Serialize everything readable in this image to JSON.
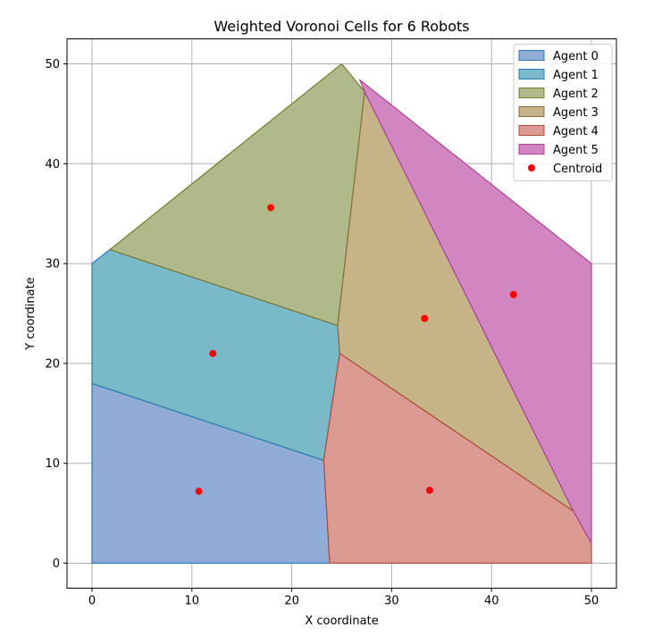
{
  "chart_data": {
    "type": "area",
    "title": "Weighted Voronoi Cells for 6 Robots",
    "xlabel": "X coordinate",
    "ylabel": "Y coordinate",
    "xlim": [
      -2.5,
      52.5
    ],
    "ylim": [
      -2.5,
      52.5
    ],
    "xticks": [
      0,
      10,
      20,
      30,
      40,
      50
    ],
    "yticks": [
      0,
      10,
      20,
      30,
      40,
      50
    ],
    "grid": true,
    "legend_position": "top-right",
    "series": [
      {
        "name": "Agent 0",
        "color": "#91acd6",
        "edge_color": "#2a7ab5",
        "polygon": [
          [
            0,
            0
          ],
          [
            23.8,
            0
          ],
          [
            23.2,
            10.3
          ],
          [
            0,
            18
          ]
        ]
      },
      {
        "name": "Agent 1",
        "color": "#7ab9c8",
        "edge_color": "#2a7ab5",
        "polygon": [
          [
            0,
            18
          ],
          [
            23.2,
            10.3
          ],
          [
            24.8,
            21
          ],
          [
            24.6,
            23.8
          ],
          [
            1.8,
            31.4
          ],
          [
            0,
            30
          ]
        ]
      },
      {
        "name": "Agent 2",
        "color": "#b0b98a",
        "edge_color": "#7a7a30",
        "polygon": [
          [
            1.8,
            31.4
          ],
          [
            24.6,
            23.8
          ],
          [
            27.3,
            47.2
          ],
          [
            25,
            50
          ]
        ]
      },
      {
        "name": "Agent 3",
        "color": "#c6b488",
        "edge_color": "#8c6b3a",
        "polygon": [
          [
            24.6,
            23.8
          ],
          [
            24.8,
            21
          ],
          [
            48.2,
            5.2
          ],
          [
            27.3,
            47.2
          ]
        ]
      },
      {
        "name": "Agent 4",
        "color": "#db9b92",
        "edge_color": "#b04a3a",
        "polygon": [
          [
            23.8,
            0
          ],
          [
            50,
            0
          ],
          [
            50,
            2
          ],
          [
            48.2,
            5.2
          ],
          [
            24.8,
            21
          ],
          [
            23.2,
            10.3
          ]
        ]
      },
      {
        "name": "Agent 5",
        "color": "#d186c1",
        "edge_color": "#b0409a",
        "polygon": [
          [
            27.3,
            47.2
          ],
          [
            48.2,
            5.2
          ],
          [
            50,
            2
          ],
          [
            50,
            30
          ],
          [
            26.8,
            48.4
          ]
        ]
      }
    ],
    "centroids": {
      "name": "Centroid",
      "color": "#ff0000",
      "points": [
        [
          10.7,
          7.2
        ],
        [
          12.1,
          21.0
        ],
        [
          17.9,
          35.6
        ],
        [
          33.3,
          24.5
        ],
        [
          33.8,
          7.3
        ],
        [
          42.2,
          26.9
        ]
      ]
    }
  }
}
